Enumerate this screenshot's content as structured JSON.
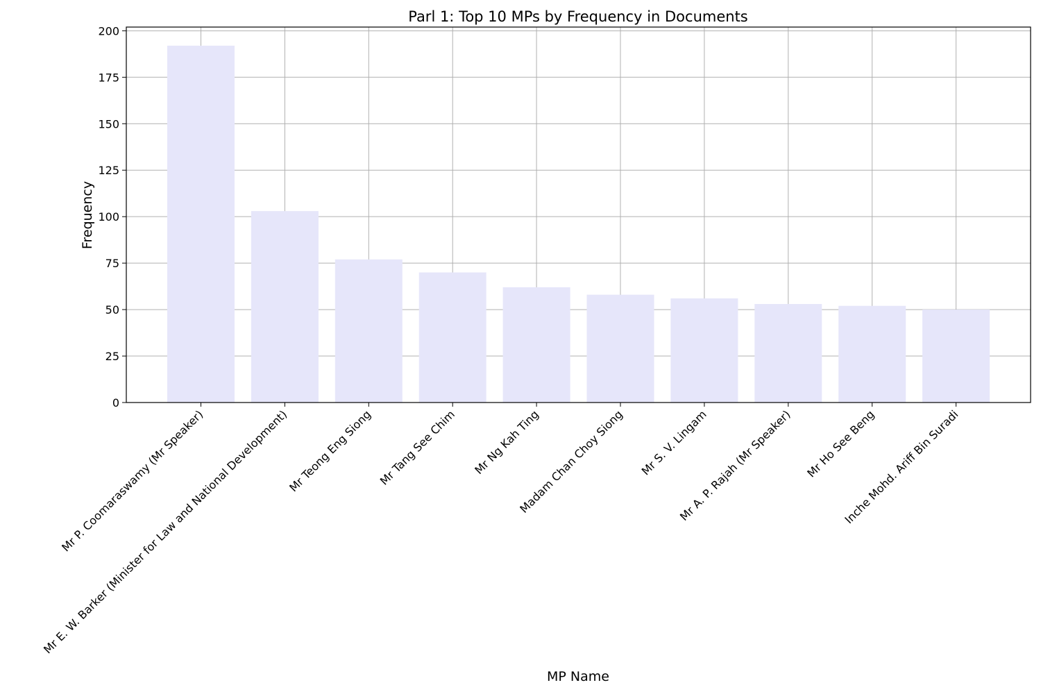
{
  "chart_data": {
    "type": "bar",
    "title": "Parl 1: Top 10 MPs by Frequency in Documents",
    "xlabel": "MP Name",
    "ylabel": "Frequency",
    "categories": [
      "Mr P. Coomaraswamy (Mr Speaker)",
      "Mr E. W. Barker (Minister for Law and National Development)",
      "Mr Teong Eng Siong",
      "Mr Tang See Chim",
      "Mr Ng Kah Ting",
      "Madam Chan Choy Siong",
      "Mr S. V. Lingam",
      "Mr A. P. Rajah (Mr Speaker)",
      "Mr Ho See Beng",
      "Inche Mohd. Ariff Bin Suradi"
    ],
    "values": [
      192,
      103,
      77,
      70,
      62,
      58,
      56,
      53,
      52,
      50
    ],
    "ylim": [
      0,
      202
    ],
    "yticks": [
      0,
      25,
      50,
      75,
      100,
      125,
      150,
      175,
      200
    ],
    "grid": true,
    "bar_color": "#e6e6fa"
  }
}
